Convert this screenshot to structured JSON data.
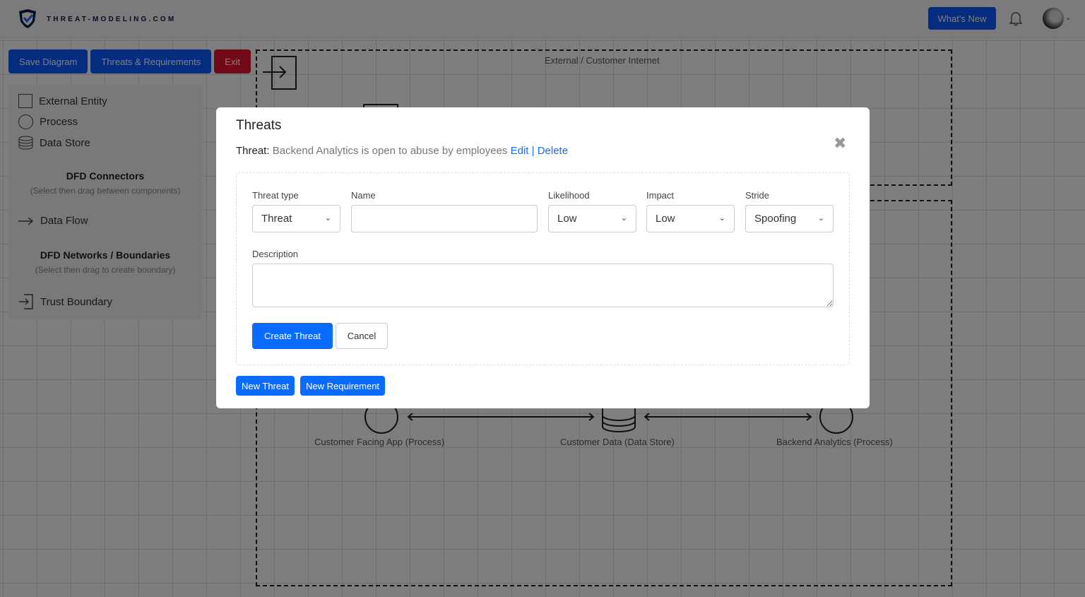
{
  "header": {
    "brand": "THREAT-MODELING.COM",
    "whats_new": "What's New"
  },
  "toolbar": {
    "save": "Save Diagram",
    "threats": "Threats & Requirements",
    "exit": "Exit"
  },
  "palette": {
    "external_entity": "External Entity",
    "process": "Process",
    "data_store": "Data Store",
    "connectors_title": "DFD Connectors",
    "connectors_hint": "(Select then drag between components)",
    "data_flow": "Data Flow",
    "networks_title": "DFD Networks / Boundaries",
    "networks_hint": "(Select then drag to create boundary)",
    "trust_boundary": "Trust Boundary"
  },
  "diagram": {
    "zone_top": "External / Customer Internet",
    "nodes": [
      "Customer Facing App (Process)",
      "Customer Data (Data Store)",
      "Backend Analytics (Process)"
    ]
  },
  "modal": {
    "title": "Threats",
    "threat_prefix": "Threat:",
    "threat_text": "Backend Analytics is open to abuse by employees",
    "edit": "Edit",
    "separator": "|",
    "delete": "Delete",
    "form": {
      "threat_type_label": "Threat type",
      "threat_type": "Threat",
      "name_label": "Name",
      "name_value": "",
      "likelihood_label": "Likelihood",
      "likelihood": "Low",
      "impact_label": "Impact",
      "impact": "Low",
      "stride_label": "Stride",
      "stride": "Spoofing",
      "description_label": "Description",
      "description": "",
      "create": "Create Threat",
      "cancel": "Cancel"
    },
    "new_threat": "New Threat",
    "new_requirement": "New Requirement"
  },
  "colors": {
    "primary": "#0a6cff",
    "danger": "#e0142f"
  }
}
